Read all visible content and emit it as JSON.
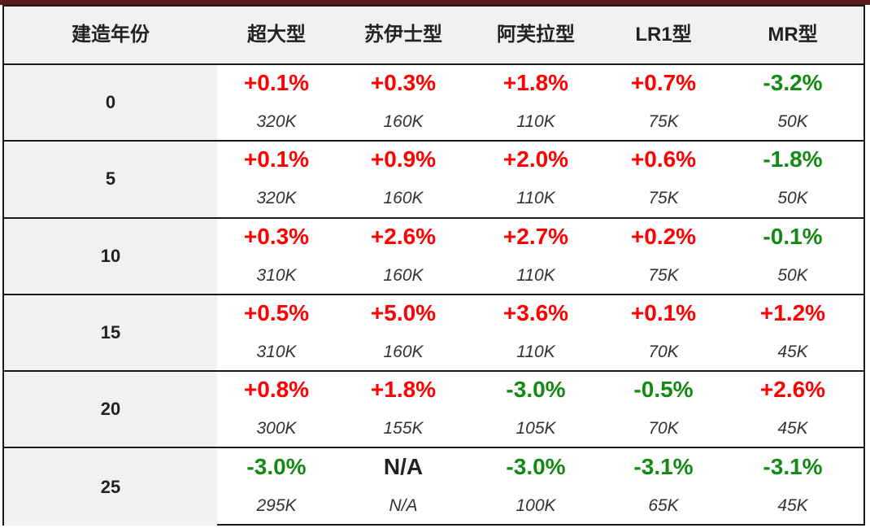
{
  "header": {
    "year_label": "建造年份",
    "columns": [
      "超大型",
      "苏伊士型",
      "阿芙拉型",
      "LR1型",
      "MR型"
    ]
  },
  "colors": {
    "positive": "#ff0000",
    "negative": "#138a13",
    "neutral": "#222222"
  },
  "rows": [
    {
      "year": "0",
      "cells": [
        {
          "pct": "+0.1%",
          "val": "320K"
        },
        {
          "pct": "+0.3%",
          "val": "160K"
        },
        {
          "pct": "+1.8%",
          "val": "110K"
        },
        {
          "pct": "+0.7%",
          "val": "75K"
        },
        {
          "pct": "-3.2%",
          "val": "50K"
        }
      ]
    },
    {
      "year": "5",
      "cells": [
        {
          "pct": "+0.1%",
          "val": "320K"
        },
        {
          "pct": "+0.9%",
          "val": "160K"
        },
        {
          "pct": "+2.0%",
          "val": "110K"
        },
        {
          "pct": "+0.6%",
          "val": "75K"
        },
        {
          "pct": "-1.8%",
          "val": "50K"
        }
      ]
    },
    {
      "year": "10",
      "cells": [
        {
          "pct": "+0.3%",
          "val": "310K"
        },
        {
          "pct": "+2.6%",
          "val": "160K"
        },
        {
          "pct": "+2.7%",
          "val": "110K"
        },
        {
          "pct": "+0.2%",
          "val": "75K"
        },
        {
          "pct": "-0.1%",
          "val": "50K"
        }
      ]
    },
    {
      "year": "15",
      "cells": [
        {
          "pct": "+0.5%",
          "val": "310K"
        },
        {
          "pct": "+5.0%",
          "val": "160K"
        },
        {
          "pct": "+3.6%",
          "val": "110K"
        },
        {
          "pct": "+0.1%",
          "val": "70K"
        },
        {
          "pct": "+1.2%",
          "val": "45K"
        }
      ]
    },
    {
      "year": "20",
      "cells": [
        {
          "pct": "+0.8%",
          "val": "300K"
        },
        {
          "pct": "+1.8%",
          "val": "155K"
        },
        {
          "pct": "-3.0%",
          "val": "105K"
        },
        {
          "pct": "-0.5%",
          "val": "70K"
        },
        {
          "pct": "+2.6%",
          "val": "45K"
        }
      ]
    },
    {
      "year": "25",
      "cells": [
        {
          "pct": "-3.0%",
          "val": "295K"
        },
        {
          "pct": "N/A",
          "val": "N/A"
        },
        {
          "pct": "-3.0%",
          "val": "100K"
        },
        {
          "pct": "-3.1%",
          "val": "65K"
        },
        {
          "pct": "-3.1%",
          "val": "45K"
        }
      ]
    }
  ]
}
